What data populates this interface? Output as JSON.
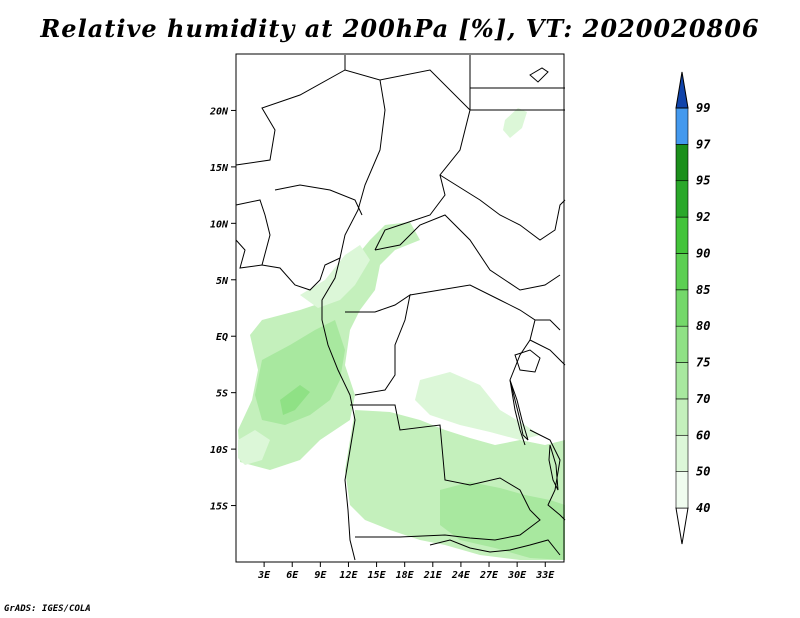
{
  "title": "Relative humidity at 200hPa [%], VT: 2020020806",
  "credit": "GrADS: IGES/COLA",
  "map": {
    "lon_range": [
      0,
      35
    ],
    "lat_range": [
      -20,
      25
    ],
    "lat_ticks": [
      {
        "value": 20,
        "label": "20N"
      },
      {
        "value": 15,
        "label": "15N"
      },
      {
        "value": 10,
        "label": "10N"
      },
      {
        "value": 5,
        "label": "5N"
      },
      {
        "value": 0,
        "label": "EQ"
      },
      {
        "value": -5,
        "label": "5S"
      },
      {
        "value": -10,
        "label": "10S"
      },
      {
        "value": -15,
        "label": "15S"
      }
    ],
    "lon_ticks": [
      {
        "value": 3,
        "label": "3E"
      },
      {
        "value": 6,
        "label": "6E"
      },
      {
        "value": 9,
        "label": "9E"
      },
      {
        "value": 12,
        "label": "12E"
      },
      {
        "value": 15,
        "label": "15E"
      },
      {
        "value": 18,
        "label": "18E"
      },
      {
        "value": 21,
        "label": "21E"
      },
      {
        "value": 24,
        "label": "24E"
      },
      {
        "value": 27,
        "label": "27E"
      },
      {
        "value": 30,
        "label": "30E"
      },
      {
        "value": 33,
        "label": "33E"
      }
    ]
  },
  "colorbar": {
    "levels": [
      "40",
      "50",
      "60",
      "70",
      "75",
      "80",
      "85",
      "90",
      "92",
      "95",
      "97",
      "99"
    ],
    "colors": [
      "#f0fcef",
      "#dcf7d8",
      "#c4f0bc",
      "#a8e89f",
      "#8fe185",
      "#74d86a",
      "#5ccf52",
      "#43c43a",
      "#2aa82a",
      "#1b8f1b",
      "#4499ee",
      "#2266cc",
      "#1144aa"
    ]
  },
  "colors": {
    "land_outline": "#000000",
    "humidity_light": "#dcf7d8",
    "humidity_mid": "#a8e89f"
  }
}
